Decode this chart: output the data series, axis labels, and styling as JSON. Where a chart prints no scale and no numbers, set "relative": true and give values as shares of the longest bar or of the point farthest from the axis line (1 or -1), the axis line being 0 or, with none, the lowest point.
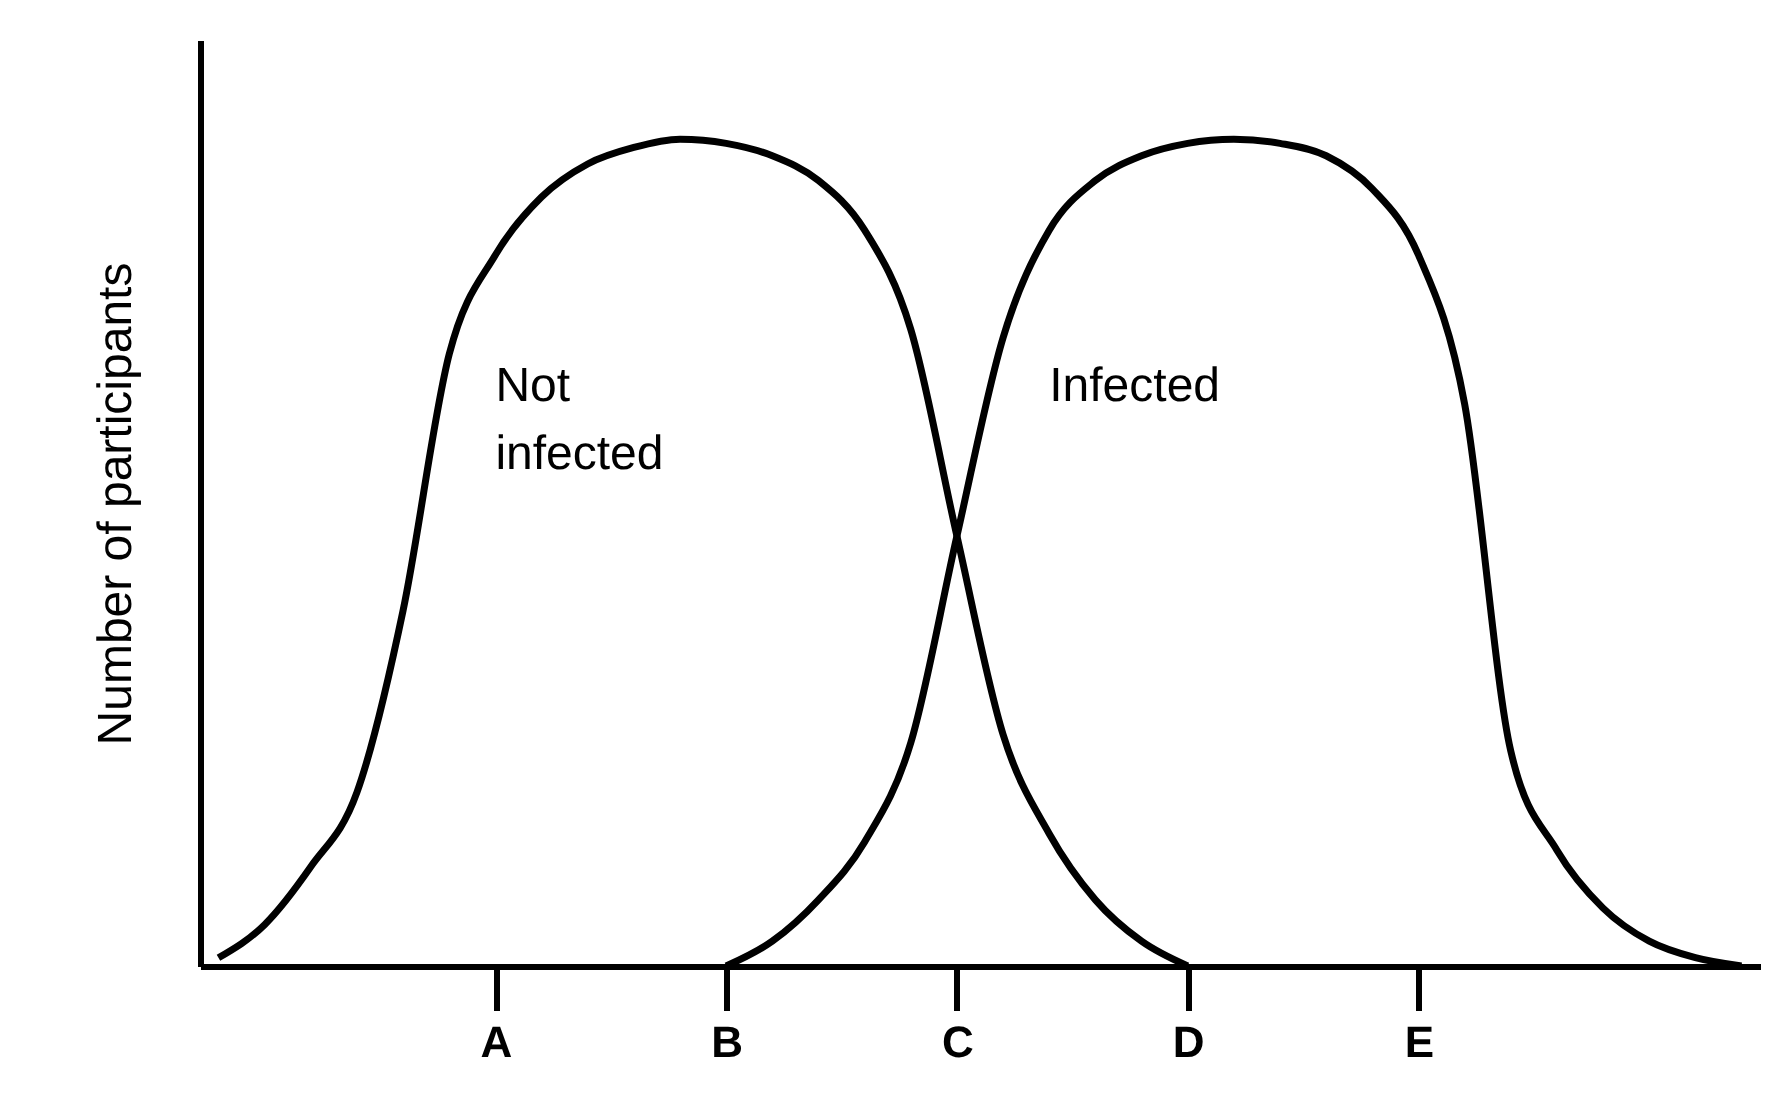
{
  "chart_data": {
    "type": "line",
    "ylabel": "Number of participants",
    "relative": true,
    "grid": false,
    "marker": "none",
    "line_style": "solid",
    "categories": [
      null,
      null,
      null,
      null,
      null,
      null,
      "A",
      null,
      null,
      null,
      null,
      "B",
      null,
      null,
      null,
      null,
      "C",
      null,
      null,
      null,
      null,
      "D",
      null,
      null,
      null,
      null,
      "E",
      null,
      null,
      null,
      null,
      null,
      null,
      null
    ],
    "series": [
      {
        "name": "Not infected",
        "color": "#000000",
        "values": [
          0.01,
          0.05,
          0.12,
          0.21,
          0.43,
          0.74,
          0.86,
          0.93,
          0.97,
          0.99,
          1.0,
          0.995,
          0.98,
          0.95,
          0.89,
          0.77,
          0.52,
          0.28,
          0.16,
          0.08,
          0.03,
          0,
          null,
          null,
          null,
          null,
          null,
          null,
          null,
          null,
          null,
          null,
          null,
          null
        ]
      },
      {
        "name": "Infected",
        "color": "#000000",
        "values": [
          null,
          null,
          null,
          null,
          null,
          null,
          null,
          null,
          null,
          null,
          null,
          0,
          0.03,
          0.08,
          0.15,
          0.27,
          0.52,
          0.76,
          0.89,
          0.95,
          0.98,
          0.995,
          1.0,
          0.995,
          0.98,
          0.94,
          0.86,
          0.68,
          0.26,
          0.14,
          0.07,
          0.03,
          0.01,
          0
        ]
      }
    ]
  }
}
